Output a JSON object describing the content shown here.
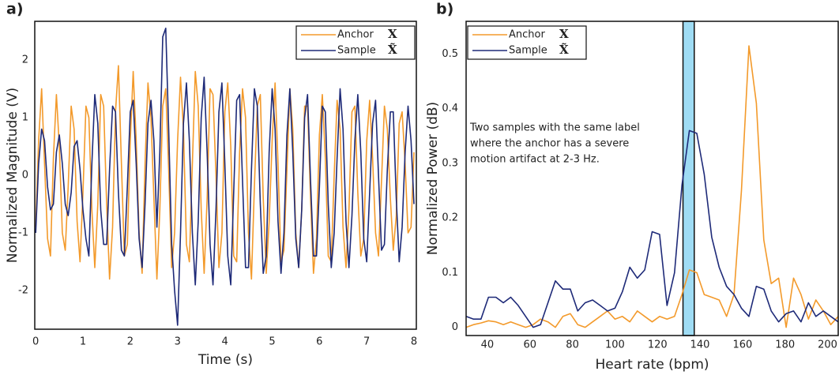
{
  "chart_data": [
    {
      "type": "line",
      "title": "a)",
      "xlabel": "Time (s)",
      "ylabel": "Normalized Magnitude (V)",
      "xlim": [
        -0.02,
        8.05
      ],
      "ylim": [
        -2.67,
        2.67
      ],
      "xticks": [
        0,
        1,
        2,
        3,
        4,
        5,
        6,
        7,
        8
      ],
      "yticks": [
        -2,
        -1,
        0,
        1,
        2
      ],
      "legend": "upper right",
      "x": [
        0,
        0.0625,
        0.125,
        0.1875,
        0.25,
        0.3125,
        0.375,
        0.4375,
        0.5,
        0.5625,
        0.625,
        0.6875,
        0.75,
        0.8125,
        0.875,
        0.9375,
        1,
        1.0625,
        1.125,
        1.1875,
        1.25,
        1.3125,
        1.375,
        1.4375,
        1.5,
        1.5625,
        1.625,
        1.6875,
        1.75,
        1.8125,
        1.875,
        1.9375,
        2,
        2.0625,
        2.125,
        2.1875,
        2.25,
        2.3125,
        2.375,
        2.4375,
        2.5,
        2.5625,
        2.625,
        2.6875,
        2.75,
        2.8125,
        2.875,
        2.9375,
        3,
        3.0625,
        3.125,
        3.1875,
        3.25,
        3.3125,
        3.375,
        3.4375,
        3.5,
        3.5625,
        3.625,
        3.6875,
        3.75,
        3.8125,
        3.875,
        3.9375,
        4,
        4.0625,
        4.125,
        4.1875,
        4.25,
        4.3125,
        4.375,
        4.4375,
        4.5,
        4.5625,
        4.625,
        4.6875,
        4.75,
        4.8125,
        4.875,
        4.9375,
        5,
        5.0625,
        5.125,
        5.1875,
        5.25,
        5.3125,
        5.375,
        5.4375,
        5.5,
        5.5625,
        5.625,
        5.6875,
        5.75,
        5.8125,
        5.875,
        5.9375,
        6,
        6.0625,
        6.125,
        6.1875,
        6.25,
        6.3125,
        6.375,
        6.4375,
        6.5,
        6.5625,
        6.625,
        6.6875,
        6.75,
        6.8125,
        6.875,
        6.9375,
        7,
        7.0625,
        7.125,
        7.1875,
        7.25,
        7.3125,
        7.375,
        7.4375,
        7.5,
        7.5625,
        7.625,
        7.6875,
        7.75,
        7.8125,
        7.875,
        7.9375,
        8
      ],
      "series": [
        {
          "name": "Anchor",
          "symbol": "X",
          "color": "#f39a2b",
          "values": [
            -0.9,
            0.6,
            1.5,
            0.2,
            -1.1,
            -1.4,
            0.3,
            1.4,
            0.5,
            -1.0,
            -1.3,
            -0.2,
            1.2,
            0.8,
            -0.8,
            -1.5,
            -0.3,
            1.2,
            1.0,
            -0.6,
            -1.6,
            -0.5,
            1.4,
            1.2,
            -0.5,
            -1.8,
            -0.9,
            1.1,
            1.9,
            0.2,
            -1.4,
            -1.2,
            0.6,
            1.8,
            0.6,
            -1.0,
            -1.7,
            0.2,
            1.6,
            1.0,
            -0.4,
            -1.8,
            -0.6,
            1.2,
            1.5,
            0.1,
            -1.6,
            -1.0,
            0.6,
            1.7,
            0.8,
            -1.2,
            -1.5,
            0.2,
            1.8,
            1.2,
            -0.6,
            -1.7,
            -0.4,
            1.5,
            1.4,
            0.0,
            -1.6,
            -1.0,
            1.1,
            1.6,
            0.5,
            -1.4,
            -1.5,
            0.4,
            1.5,
            1.0,
            -1.0,
            -1.8,
            -0.2,
            1.2,
            1.4,
            -0.4,
            -1.7,
            -0.8,
            0.6,
            1.6,
            0.2,
            -1.5,
            -1.3,
            0.1,
            1.5,
            0.8,
            -1.0,
            -1.6,
            -0.6,
            1.2,
            1.2,
            -0.4,
            -1.7,
            -1.1,
            0.7,
            1.4,
            0.3,
            -1.4,
            -1.5,
            0.0,
            1.3,
            0.8,
            -0.9,
            -1.6,
            -0.6,
            1.1,
            1.2,
            -0.3,
            -1.4,
            -1.1,
            0.6,
            1.3,
            0.3,
            -1.0,
            -1.4,
            -0.1,
            1.2,
            0.8,
            -0.4,
            -1.3,
            -0.7,
            0.9,
            1.1,
            0.2,
            -1.0,
            -0.9,
            0.4
          ]
        },
        {
          "name": "Sample",
          "symbol": "X̃",
          "color": "#1e2a78",
          "values": [
            -1.0,
            0.2,
            0.8,
            0.6,
            -0.2,
            -0.6,
            -0.5,
            0.4,
            0.7,
            0.2,
            -0.5,
            -0.7,
            -0.3,
            0.5,
            0.6,
            0.1,
            -0.6,
            -1.1,
            -1.4,
            0.2,
            1.4,
            0.9,
            -0.6,
            -1.2,
            -1.2,
            0.1,
            1.2,
            1.1,
            -0.3,
            -1.3,
            -1.4,
            -0.2,
            1.1,
            1.3,
            0.2,
            -1.1,
            -1.6,
            -0.5,
            0.9,
            1.3,
            0.6,
            -0.9,
            0.4,
            2.4,
            2.55,
            0.8,
            -1.2,
            -2.0,
            -2.6,
            -1.0,
            0.9,
            1.6,
            0.6,
            -1.0,
            -1.9,
            -0.8,
            1.0,
            1.7,
            0.4,
            -1.2,
            -1.9,
            -0.6,
            1.1,
            1.6,
            0.2,
            -1.4,
            -1.9,
            -0.3,
            1.3,
            1.4,
            -0.1,
            -1.6,
            -1.6,
            0.1,
            1.5,
            1.2,
            -0.5,
            -1.7,
            -1.4,
            0.4,
            1.5,
            0.8,
            -0.8,
            -1.7,
            -1.0,
            0.7,
            1.5,
            0.4,
            -1.1,
            -1.6,
            -0.6,
            1.0,
            1.4,
            -0.1,
            -1.4,
            -1.4,
            -0.2,
            1.2,
            1.1,
            -0.5,
            -1.6,
            -1.0,
            0.3,
            1.5,
            0.8,
            -0.8,
            -1.6,
            -0.7,
            0.6,
            1.4,
            0.4,
            -1.1,
            -1.5,
            -0.3,
            0.9,
            1.3,
            0.0,
            -1.3,
            -1.2,
            0.1,
            1.1,
            1.1,
            -0.4,
            -1.5,
            -0.9,
            0.4,
            1.2,
            0.6,
            -0.5
          ]
        }
      ]
    },
    {
      "type": "line",
      "title": "b)",
      "xlabel": "Heart rate (bpm)",
      "ylabel": "Normalized Power (dB)",
      "xlim": [
        30,
        205
      ],
      "ylim": [
        -0.015,
        0.56
      ],
      "xticks": [
        40,
        60,
        80,
        100,
        120,
        140,
        160,
        180,
        200
      ],
      "yticks": [
        0,
        0.1,
        0.2,
        0.3,
        0.4,
        0.5
      ],
      "legend": "upper left",
      "annotation": [
        "Two samples with the same label",
        "where the anchor has a severe",
        "motion artifact at 2-3 Hz."
      ],
      "highlight": [
        132,
        137.3
      ],
      "x": [
        30,
        33.5,
        37,
        40.5,
        44,
        47.5,
        51,
        54.5,
        58,
        61.5,
        65,
        68.5,
        72,
        75.5,
        79,
        82.5,
        86,
        89.5,
        93,
        96.5,
        100,
        103.5,
        107,
        110.5,
        114,
        117.5,
        121,
        124.5,
        128,
        131.5,
        135,
        138.5,
        142,
        145.5,
        149,
        152.5,
        156,
        159.5,
        163,
        166.5,
        170,
        173.5,
        177,
        180.5,
        184,
        187.5,
        191,
        194.5,
        198,
        201.5,
        205
      ],
      "series": [
        {
          "name": "Anchor",
          "symbol": "X",
          "color": "#f39a2b",
          "values": [
            0.0,
            0.005,
            0.008,
            0.012,
            0.01,
            0.005,
            0.01,
            0.005,
            0.0,
            0.005,
            0.015,
            0.01,
            0.0,
            0.02,
            0.025,
            0.005,
            0.0,
            0.01,
            0.02,
            0.03,
            0.015,
            0.02,
            0.01,
            0.03,
            0.02,
            0.01,
            0.02,
            0.015,
            0.02,
            0.06,
            0.105,
            0.1,
            0.06,
            0.055,
            0.05,
            0.02,
            0.06,
            0.25,
            0.515,
            0.41,
            0.16,
            0.08,
            0.09,
            0.0,
            0.09,
            0.06,
            0.015,
            0.05,
            0.03,
            0.005,
            0.02
          ]
        },
        {
          "name": "Sample",
          "symbol": "X̃",
          "color": "#1e2a78",
          "values": [
            0.02,
            0.015,
            0.015,
            0.055,
            0.055,
            0.045,
            0.055,
            0.04,
            0.02,
            0.0,
            0.005,
            0.045,
            0.085,
            0.07,
            0.07,
            0.03,
            0.045,
            0.05,
            0.04,
            0.03,
            0.035,
            0.065,
            0.11,
            0.09,
            0.105,
            0.175,
            0.17,
            0.04,
            0.1,
            0.26,
            0.36,
            0.355,
            0.28,
            0.165,
            0.11,
            0.075,
            0.06,
            0.035,
            0.02,
            0.075,
            0.07,
            0.03,
            0.01,
            0.025,
            0.03,
            0.01,
            0.045,
            0.02,
            0.03,
            0.02,
            0.01
          ]
        }
      ]
    }
  ]
}
